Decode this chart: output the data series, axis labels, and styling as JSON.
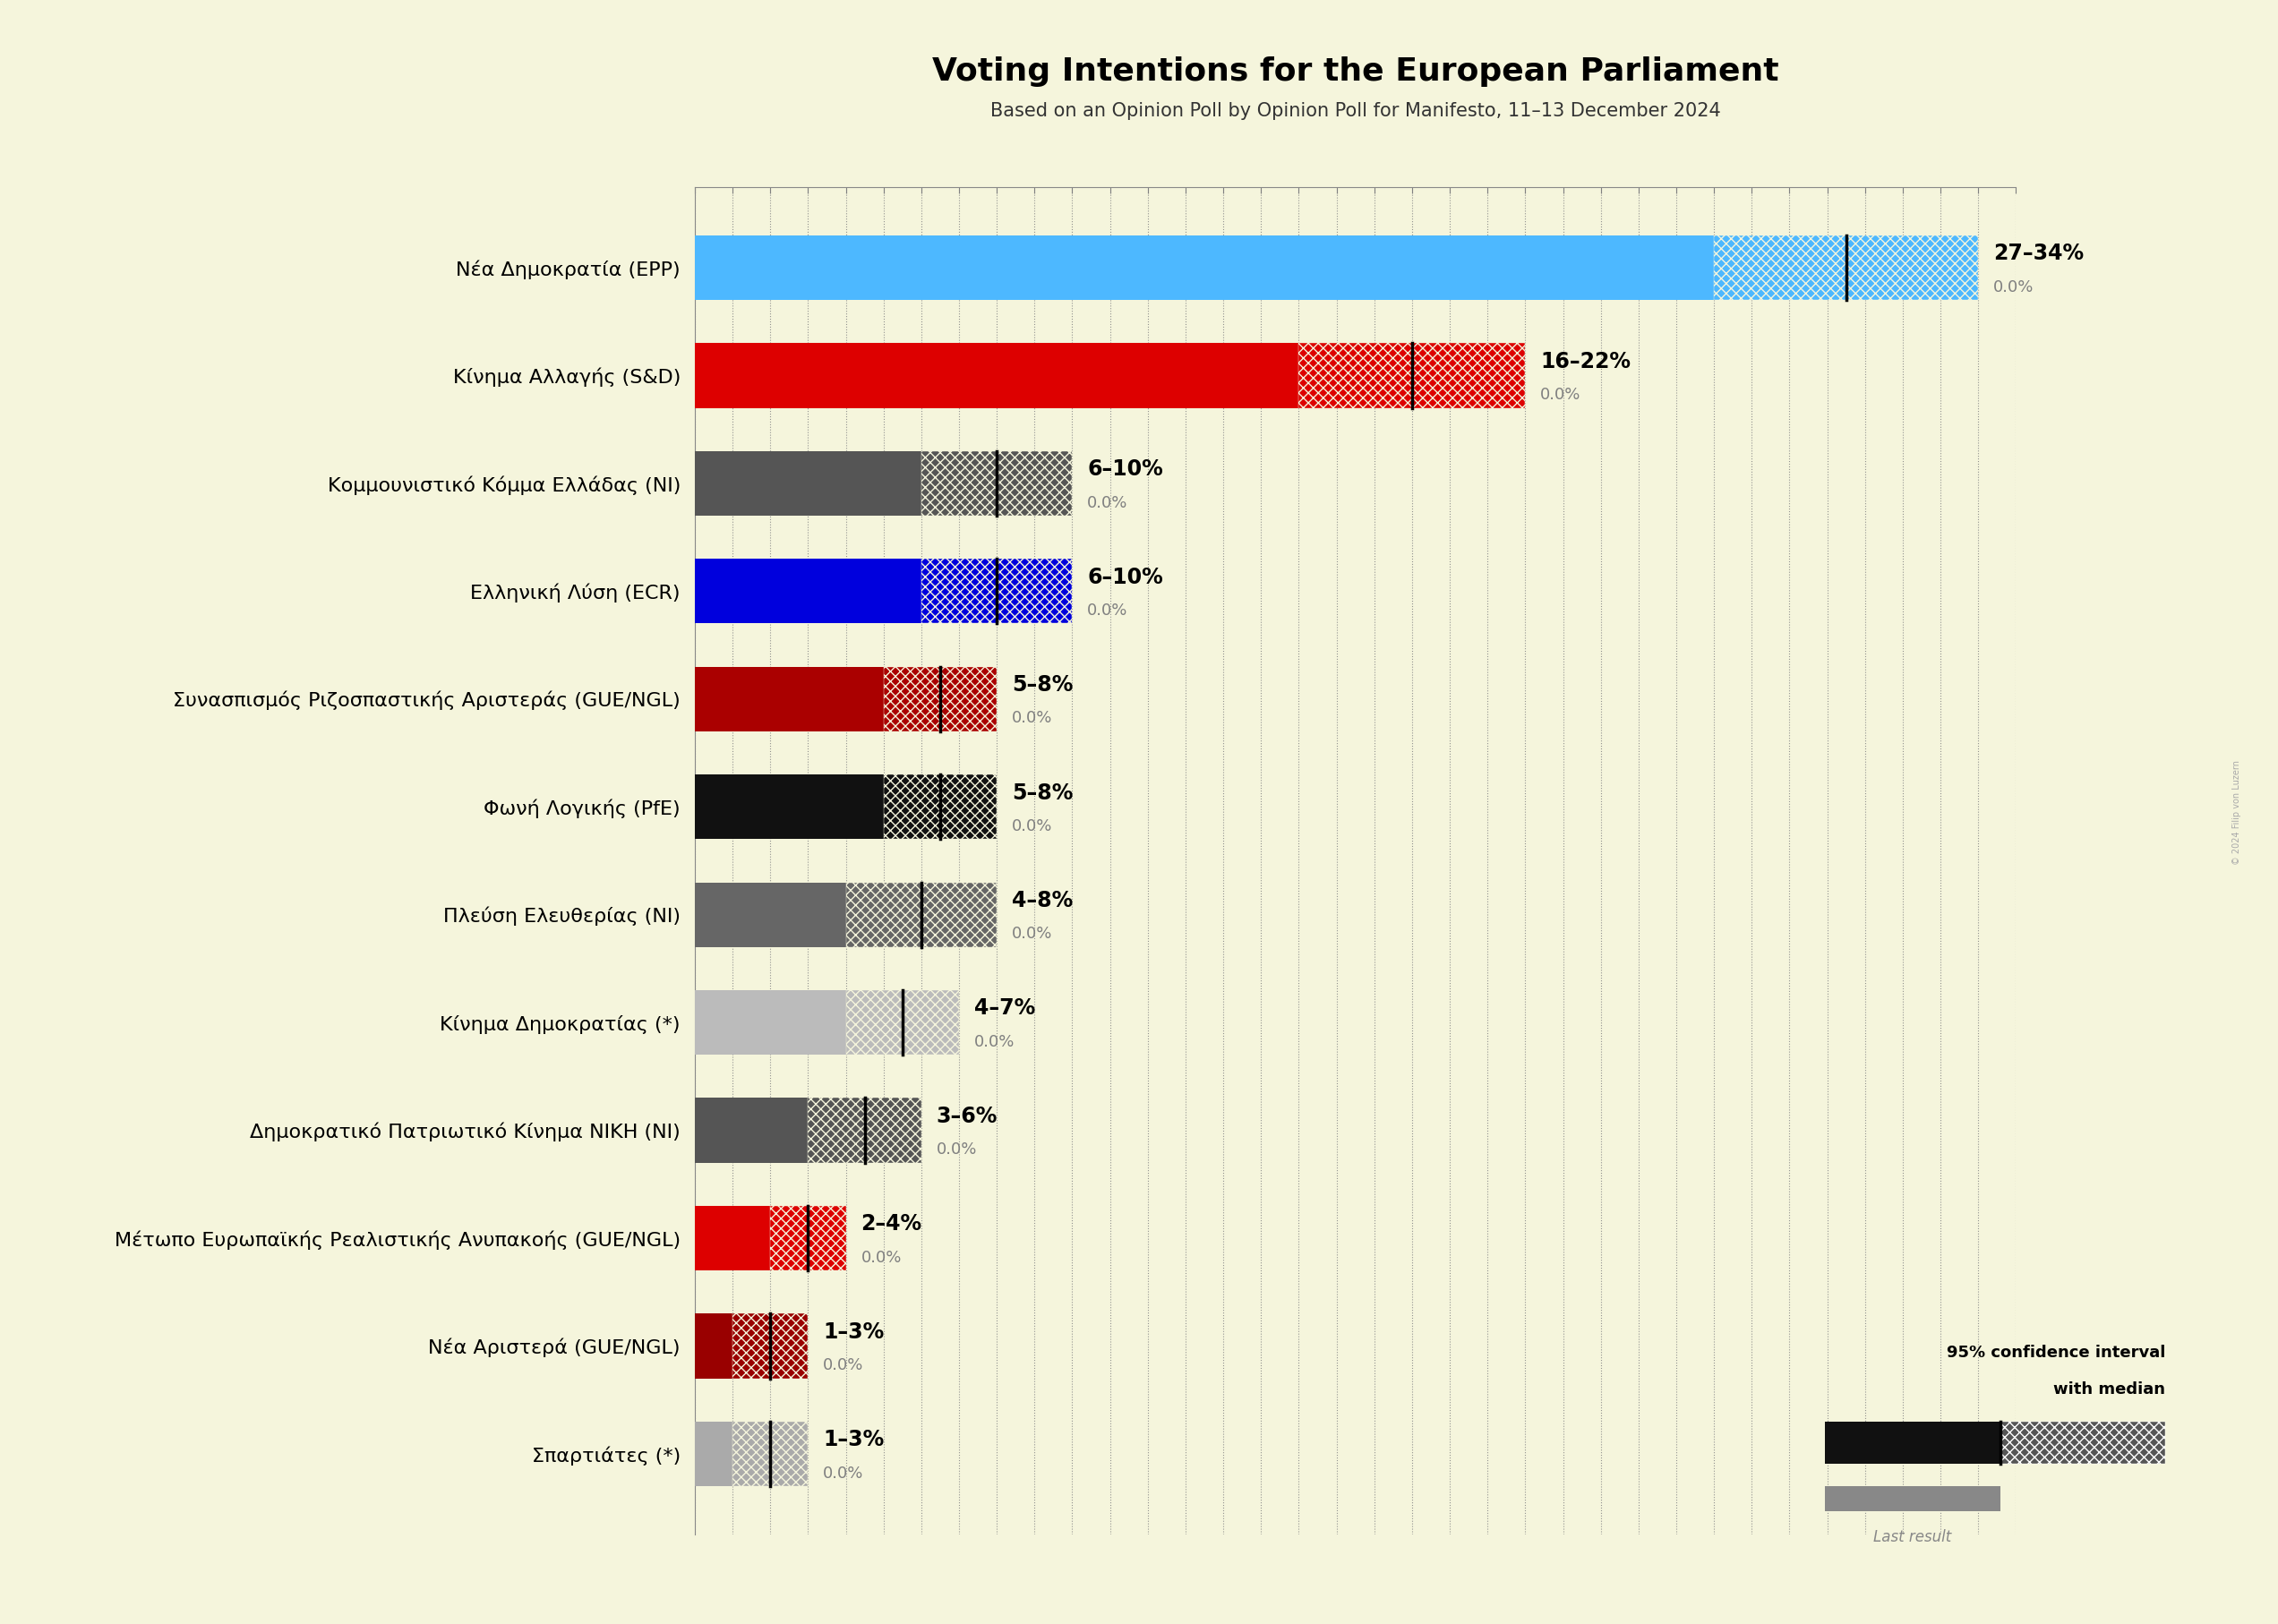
{
  "title": "Voting Intentions for the European Parliament",
  "subtitle": "Based on an Opinion Poll by Opinion Poll for Manifesto, 11–13 December 2024",
  "background_color": "#f5f5dc",
  "parties": [
    {
      "name": "Nέα Δημοκρατία (EPP)",
      "low": 27,
      "high": 34,
      "median": 30.5,
      "last": 0.0,
      "color": "#4db8ff",
      "hatch_color": "#4db8ff"
    },
    {
      "name": "Κίνημα Αλλαγής (S&D)",
      "low": 16,
      "high": 22,
      "median": 19.0,
      "last": 0.0,
      "color": "#dd0000",
      "hatch_color": "#dd0000"
    },
    {
      "name": "Κομμουνιστικό Κόμμα Ελλάδας (NI)",
      "low": 6,
      "high": 10,
      "median": 8.0,
      "last": 0.0,
      "color": "#555555",
      "hatch_color": "#777777"
    },
    {
      "name": "Ελληνική Λύση (ECR)",
      "low": 6,
      "high": 10,
      "median": 8.0,
      "last": 0.0,
      "color": "#0000dd",
      "hatch_color": "#4444ff"
    },
    {
      "name": "Συνασπισμός Ριζοσπαστικής Αριστεράς (GUE/NGL)",
      "low": 5,
      "high": 8,
      "median": 6.5,
      "last": 0.0,
      "color": "#aa0000",
      "hatch_color": "#cc3333"
    },
    {
      "name": "Φωνή Λογικής (PfE)",
      "low": 5,
      "high": 8,
      "median": 6.5,
      "last": 0.0,
      "color": "#111111",
      "hatch_color": "#444444"
    },
    {
      "name": "Πλεύση Ελευθερίας (NI)",
      "low": 4,
      "high": 8,
      "median": 6.0,
      "last": 0.0,
      "color": "#666666",
      "hatch_color": "#888888"
    },
    {
      "name": "Κίνημα Δημοκρατίας (*)",
      "low": 4,
      "high": 7,
      "median": 5.5,
      "last": 0.0,
      "color": "#bbbbbb",
      "hatch_color": "#dddddd"
    },
    {
      "name": "Δημοκρατικό Πατριωτικό Κίνημα ΝΙΚΗ (NI)",
      "low": 3,
      "high": 6,
      "median": 4.5,
      "last": 0.0,
      "color": "#555555",
      "hatch_color": "#888888"
    },
    {
      "name": "Μέτωπο Ευρωπαϊκής Ρεαλιστικής Ανυπακοής (GUE/NGL)",
      "low": 2,
      "high": 4,
      "median": 3.0,
      "last": 0.0,
      "color": "#dd0000",
      "hatch_color": "#ff4444"
    },
    {
      "name": "Νέα Αριστερά (GUE/NGL)",
      "low": 1,
      "high": 3,
      "median": 2.0,
      "last": 0.0,
      "color": "#990000",
      "hatch_color": "#cc3333"
    },
    {
      "name": "Σπαρτιάτες (*)",
      "low": 1,
      "high": 3,
      "median": 2.0,
      "last": 0.0,
      "color": "#aaaaaa",
      "hatch_color": "#cccccc"
    }
  ],
  "xlim_max": 35,
  "bar_height": 0.6,
  "title_fontsize": 26,
  "subtitle_fontsize": 15,
  "label_fontsize": 16,
  "tick_fontsize": 12,
  "range_fontsize": 17,
  "last_fontsize": 13
}
